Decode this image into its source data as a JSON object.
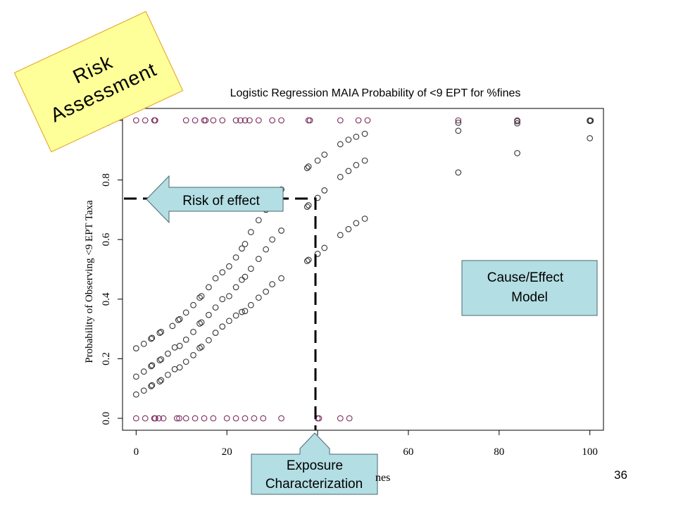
{
  "slide": {
    "page_number": "36",
    "risk_stamp": {
      "line1": "Risk",
      "line2": "Assessment",
      "fill": "#FFFF99"
    },
    "callouts": {
      "risk_of_effect": "Risk of effect",
      "cause_effect_line1": "Cause/Effect",
      "cause_effect_line2": "Model",
      "exposure_line1": "Exposure",
      "exposure_line2": "Characterization",
      "fill": "#B3DEE3"
    }
  },
  "chart_data": {
    "type": "scatter",
    "title": "Logistic Regression MAIA Probability of <9 EPT for %fines",
    "xlabel_visible": "nes",
    "ylabel": "Probability of Observing <9 EPT Taxa",
    "xlim": [
      -3,
      103
    ],
    "ylim": [
      -0.04,
      1.04
    ],
    "xticks": [
      0,
      20,
      40,
      60,
      80,
      100
    ],
    "xtick_labels": [
      "0",
      "20",
      "",
      "60",
      "80",
      "100"
    ],
    "yticks": [
      0.0,
      0.2,
      0.4,
      0.6,
      0.8,
      1.0
    ],
    "ytick_labels": [
      "0.0",
      "0.2",
      "0.4",
      "0.6",
      "0.8",
      "1.0"
    ],
    "marker": "open-circle",
    "series": [
      {
        "color": "#7B2A5C",
        "points": [
          [
            0,
            1
          ],
          [
            2,
            1
          ],
          [
            4,
            1
          ],
          [
            4.2,
            1
          ],
          [
            11,
            1
          ],
          [
            13,
            1
          ],
          [
            15,
            1
          ],
          [
            15.3,
            1
          ],
          [
            17,
            1
          ],
          [
            19,
            1
          ],
          [
            22,
            1
          ],
          [
            23,
            1
          ],
          [
            24,
            1
          ],
          [
            25,
            1
          ],
          [
            27,
            1
          ],
          [
            30,
            1
          ],
          [
            32,
            1
          ],
          [
            38,
            1
          ],
          [
            38.3,
            1
          ],
          [
            45,
            1
          ],
          [
            49,
            1
          ],
          [
            51,
            1
          ],
          [
            71,
            1
          ],
          [
            84,
            1
          ],
          [
            100,
            1
          ],
          [
            0,
            0
          ],
          [
            2,
            0
          ],
          [
            4,
            0
          ],
          [
            4.2,
            0
          ],
          [
            5,
            0
          ],
          [
            6,
            0
          ],
          [
            9,
            0
          ],
          [
            9.5,
            0
          ],
          [
            11,
            0
          ],
          [
            13,
            0
          ],
          [
            15,
            0
          ],
          [
            17,
            0
          ],
          [
            20,
            0
          ],
          [
            22,
            0
          ],
          [
            24,
            0
          ],
          [
            26,
            0
          ],
          [
            28,
            0
          ],
          [
            32,
            0
          ],
          [
            40,
            0
          ],
          [
            40.3,
            0
          ],
          [
            45,
            0
          ],
          [
            47,
            0
          ]
        ]
      },
      {
        "color": "#333333",
        "points": [
          [
            0,
            0.235
          ],
          [
            1.7,
            0.25
          ],
          [
            3.3,
            0.267
          ],
          [
            3.5,
            0.27
          ],
          [
            5.2,
            0.287
          ],
          [
            5.5,
            0.29
          ],
          [
            8,
            0.31
          ],
          [
            9.3,
            0.33
          ],
          [
            9.6,
            0.333
          ],
          [
            11,
            0.355
          ],
          [
            12.6,
            0.38
          ],
          [
            14,
            0.405
          ],
          [
            14.4,
            0.41
          ],
          [
            16,
            0.44
          ],
          [
            17.5,
            0.47
          ],
          [
            19,
            0.49
          ],
          [
            20.5,
            0.51
          ],
          [
            22,
            0.54
          ],
          [
            23.3,
            0.57
          ],
          [
            24,
            0.585
          ],
          [
            25.3,
            0.625
          ],
          [
            27,
            0.665
          ],
          [
            28.6,
            0.7
          ],
          [
            30,
            0.72
          ],
          [
            32,
            0.768
          ],
          [
            37.7,
            0.84
          ],
          [
            38,
            0.845
          ],
          [
            40,
            0.865
          ],
          [
            41.5,
            0.885
          ],
          [
            45,
            0.92
          ],
          [
            46.8,
            0.935
          ],
          [
            48.5,
            0.945
          ],
          [
            50.4,
            0.955
          ],
          [
            71,
            0.992
          ],
          [
            84,
            0.997
          ],
          [
            100,
            0.999
          ],
          [
            100.2,
            0.999
          ]
        ]
      },
      {
        "color": "#333333",
        "points": [
          [
            0,
            0.14
          ],
          [
            1.7,
            0.157
          ],
          [
            3.3,
            0.175
          ],
          [
            3.5,
            0.178
          ],
          [
            5.2,
            0.195
          ],
          [
            5.5,
            0.198
          ],
          [
            7,
            0.217
          ],
          [
            8.5,
            0.238
          ],
          [
            9.6,
            0.243
          ],
          [
            11,
            0.264
          ],
          [
            12.6,
            0.29
          ],
          [
            14,
            0.318
          ],
          [
            14.4,
            0.322
          ],
          [
            16,
            0.347
          ],
          [
            17.5,
            0.372
          ],
          [
            19,
            0.4
          ],
          [
            20.5,
            0.41
          ],
          [
            22,
            0.44
          ],
          [
            23.3,
            0.465
          ],
          [
            24,
            0.475
          ],
          [
            25.3,
            0.502
          ],
          [
            27,
            0.535
          ],
          [
            28.6,
            0.567
          ],
          [
            30,
            0.6
          ],
          [
            32,
            0.63
          ],
          [
            37.7,
            0.71
          ],
          [
            38,
            0.715
          ],
          [
            40,
            0.74
          ],
          [
            41.5,
            0.765
          ],
          [
            45,
            0.81
          ],
          [
            46.8,
            0.83
          ],
          [
            48.5,
            0.85
          ],
          [
            50.4,
            0.865
          ],
          [
            71,
            0.965
          ],
          [
            84,
            0.99
          ],
          [
            100,
            0.998
          ]
        ]
      },
      {
        "color": "#333333",
        "points": [
          [
            0,
            0.08
          ],
          [
            1.7,
            0.093
          ],
          [
            3.3,
            0.108
          ],
          [
            3.5,
            0.111
          ],
          [
            5.2,
            0.124
          ],
          [
            5.5,
            0.128
          ],
          [
            7,
            0.146
          ],
          [
            8.5,
            0.165
          ],
          [
            9.6,
            0.171
          ],
          [
            11,
            0.19
          ],
          [
            12.6,
            0.212
          ],
          [
            14,
            0.236
          ],
          [
            14.4,
            0.24
          ],
          [
            16,
            0.262
          ],
          [
            17.5,
            0.287
          ],
          [
            19,
            0.308
          ],
          [
            20.5,
            0.327
          ],
          [
            22,
            0.345
          ],
          [
            23.3,
            0.357
          ],
          [
            24,
            0.36
          ],
          [
            25.3,
            0.38
          ],
          [
            27,
            0.405
          ],
          [
            28.6,
            0.425
          ],
          [
            30,
            0.45
          ],
          [
            32,
            0.47
          ],
          [
            37.7,
            0.528
          ],
          [
            38,
            0.532
          ],
          [
            40,
            0.552
          ],
          [
            41.5,
            0.572
          ],
          [
            45,
            0.615
          ],
          [
            46.8,
            0.635
          ],
          [
            48.5,
            0.655
          ],
          [
            50.4,
            0.67
          ],
          [
            71,
            0.825
          ],
          [
            84,
            0.89
          ],
          [
            100,
            0.94
          ]
        ]
      }
    ]
  }
}
